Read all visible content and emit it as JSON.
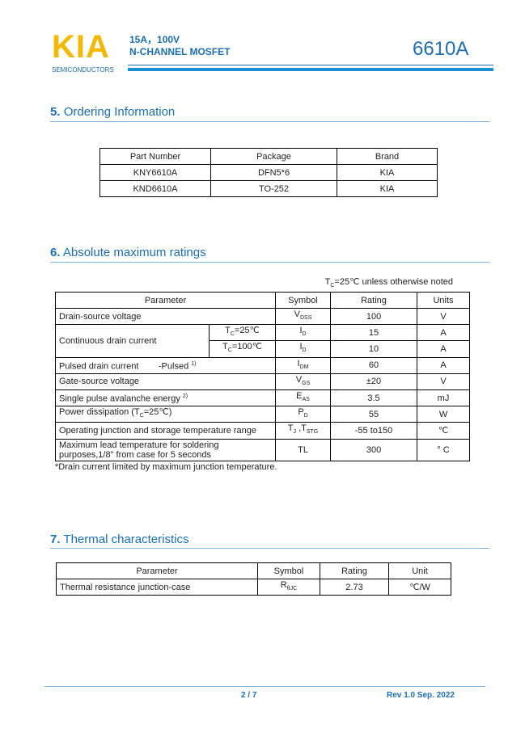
{
  "header": {
    "logo": "KIA",
    "logo_sub": "SEMICONDUCTORS",
    "line1": "15A，100V",
    "line2": "N-CHANNEL MOSFET",
    "part": "6610A"
  },
  "ordering": {
    "number": "5.",
    "title": "Ordering Information",
    "table": {
      "headers": [
        "Part Number",
        "Package",
        "Brand"
      ],
      "rows": [
        [
          "KNY6610A",
          "DFN5*6",
          "KIA"
        ],
        [
          "KND6610A",
          "TO-252",
          "KIA"
        ]
      ]
    }
  },
  "absolute": {
    "number": "6.",
    "title": "Absolute maximum ratings",
    "note": [
      {
        "t": "T"
      },
      {
        "t": "C",
        "s": "sub"
      },
      {
        "t": "=25℃ unless otherwise noted"
      }
    ],
    "table": {
      "headers": [
        "Parameter",
        "Symbol",
        "Rating",
        "Units"
      ],
      "rows": [
        {
          "parameter": "Drain-source voltage",
          "symbol": [
            {
              "t": "V"
            },
            {
              "t": "DSS",
              "s": "sub"
            }
          ],
          "rating": "100",
          "units": "V"
        },
        {
          "parameter": "Continuous drain current",
          "sub_rows": [
            {
              "condition": [
                {
                  "t": "T"
                },
                {
                  "t": "C",
                  "s": "sub"
                },
                {
                  "t": "=25℃"
                }
              ],
              "symbol": [
                {
                  "t": "I"
                },
                {
                  "t": "D",
                  "s": "sub"
                }
              ],
              "rating": "15",
              "units": "A"
            },
            {
              "condition": [
                {
                  "t": "T"
                },
                {
                  "t": "C",
                  "s": "sub"
                },
                {
                  "t": "=100℃"
                }
              ],
              "symbol": [
                {
                  "t": "I"
                },
                {
                  "t": "D",
                  "s": "sub"
                }
              ],
              "rating": "10",
              "units": "A"
            }
          ]
        },
        {
          "parameter": [
            {
              "t": "Pulsed drain current        -Pulsed "
            },
            {
              "t": "1)",
              "s": "sup"
            }
          ],
          "symbol": [
            {
              "t": "I"
            },
            {
              "t": "DM",
              "s": "sub"
            }
          ],
          "rating": "60",
          "units": "A"
        },
        {
          "parameter": "Gate-source voltage",
          "symbol": [
            {
              "t": "V"
            },
            {
              "t": "GS",
              "s": "sub"
            }
          ],
          "rating": "±20",
          "units": "V"
        },
        {
          "parameter": [
            {
              "t": "Single pulse avalanche energy "
            },
            {
              "t": "2)",
              "s": "sup"
            }
          ],
          "symbol": [
            {
              "t": "E"
            },
            {
              "t": "AS",
              "s": "sub"
            }
          ],
          "rating": "3.5",
          "units": "mJ"
        },
        {
          "parameter": [
            {
              "t": "Power dissipation (T"
            },
            {
              "t": "C",
              "s": "sub"
            },
            {
              "t": "=25℃)"
            }
          ],
          "symbol": [
            {
              "t": "P"
            },
            {
              "t": "D",
              "s": "sub"
            }
          ],
          "rating": "55",
          "units": "W"
        },
        {
          "parameter": "Operating junction and storage temperature range",
          "symbol": [
            {
              "t": "T"
            },
            {
              "t": "J",
              "s": "sub"
            },
            {
              "t": " ,T"
            },
            {
              "t": "STG",
              "s": "sub"
            }
          ],
          "rating": "-55 to150",
          "units": "℃"
        },
        {
          "parameter": "Maximum lead temperature for soldering purposes,1/8\" from case for 5 seconds",
          "symbol": "TL",
          "rating": "300",
          "units": "° C"
        }
      ]
    },
    "footnote": "*Drain current limited by maximum junction temperature."
  },
  "thermal": {
    "number": "7.",
    "title": "Thermal characteristics",
    "table": {
      "headers": [
        "Parameter",
        "Symbol",
        "Rating",
        "Unit"
      ],
      "rows": [
        {
          "parameter": "Thermal resistance junction-case",
          "symbol": [
            {
              "t": "R"
            },
            {
              "t": "θJC",
              "s": "sub"
            }
          ],
          "rating": "2.73",
          "units": "℃/W"
        }
      ]
    }
  },
  "footer": {
    "page": "2 / 7",
    "revision": "Rev 1.0 Sep. 2022"
  }
}
